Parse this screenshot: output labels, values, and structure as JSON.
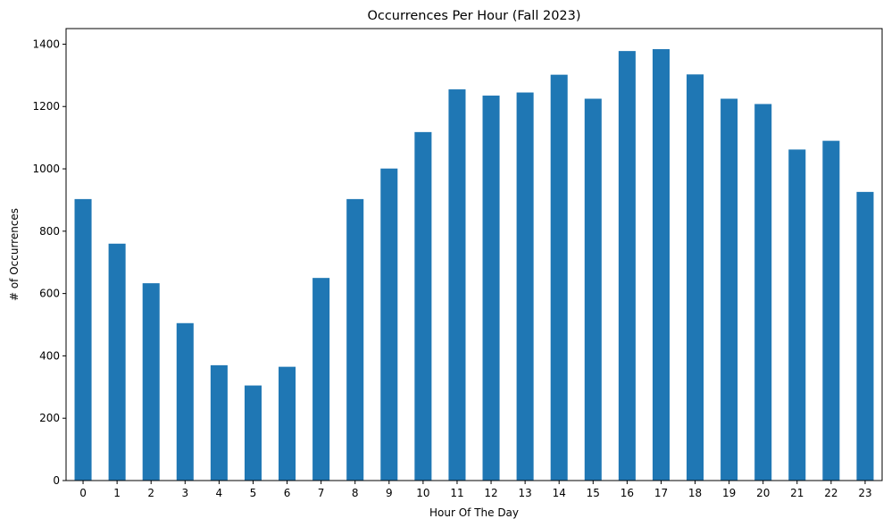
{
  "chart_data": {
    "type": "bar",
    "title": "Occurrences Per Hour (Fall 2023)",
    "xlabel": "Hour Of The Day",
    "ylabel": "# of Occurrences",
    "categories": [
      "0",
      "1",
      "2",
      "3",
      "4",
      "5",
      "6",
      "7",
      "8",
      "9",
      "10",
      "11",
      "12",
      "13",
      "14",
      "15",
      "16",
      "17",
      "18",
      "19",
      "20",
      "21",
      "22",
      "23"
    ],
    "values": [
      903,
      760,
      633,
      505,
      370,
      305,
      365,
      650,
      903,
      1001,
      1118,
      1255,
      1235,
      1245,
      1302,
      1225,
      1378,
      1384,
      1303,
      1225,
      1208,
      1062,
      1090,
      926
    ],
    "ylim": [
      0,
      1450
    ],
    "yticks": [
      "0",
      "200",
      "400",
      "600",
      "800",
      "1000",
      "1200",
      "1400"
    ],
    "grid": false,
    "legend": "none",
    "bar_color": "#1f77b4"
  }
}
